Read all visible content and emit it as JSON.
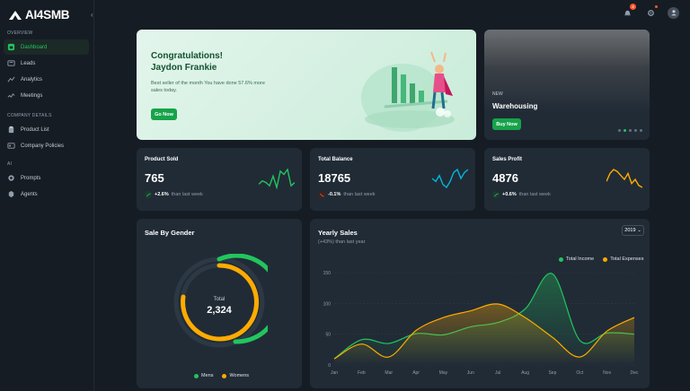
{
  "brand": {
    "name": "AI4SMB"
  },
  "sidebar": {
    "sections": [
      {
        "title": "OVERVIEW",
        "items": [
          {
            "label": "Dashboard",
            "active": true,
            "icon": "dashboard-icon"
          },
          {
            "label": "Leads",
            "icon": "leads-icon"
          },
          {
            "label": "Analytics",
            "icon": "analytics-icon"
          },
          {
            "label": "Meetings",
            "icon": "meetings-icon"
          }
        ]
      },
      {
        "title": "COMPANY DETAILS",
        "items": [
          {
            "label": "Product List",
            "icon": "product-list-icon"
          },
          {
            "label": "Company Policies",
            "icon": "policies-icon"
          }
        ]
      },
      {
        "title": "AI",
        "items": [
          {
            "label": "Prompts",
            "icon": "prompts-icon"
          },
          {
            "label": "Agents",
            "icon": "agents-icon"
          }
        ]
      }
    ]
  },
  "header": {
    "notification_count": "4"
  },
  "welcome": {
    "title": "Congratulations!",
    "name": "Jaydon Frankie",
    "description": "Best seller of the month You have done 57.6% more sales today.",
    "button": "Go Now"
  },
  "featured": {
    "tag": "NEW",
    "title": "Warehousing",
    "button": "Buy Now",
    "slides": 5,
    "active_slide": 2
  },
  "stats": [
    {
      "label": "Product Sold",
      "value": "765",
      "change": "+2.6%",
      "note": "than last week",
      "trend": "up",
      "color": "#22c55e",
      "spark": [
        4,
        6,
        5,
        3,
        9,
        2,
        12,
        10,
        13,
        3,
        5
      ]
    },
    {
      "label": "Total Balance",
      "value": "18765",
      "change": "-0.1%",
      "note": "than last week",
      "trend": "down",
      "color": "#00b8d9",
      "spark": [
        6,
        5,
        7,
        4,
        3,
        5,
        8,
        9,
        6,
        8,
        9
      ]
    },
    {
      "label": "Sales Profit",
      "value": "4876",
      "change": "+0.6%",
      "note": "than last week",
      "trend": "up",
      "color": "#ffab00",
      "spark": [
        5,
        9,
        11,
        10,
        8,
        6,
        9,
        4,
        6,
        3,
        2
      ]
    }
  ],
  "gender": {
    "title": "Sale By Gender",
    "total_label": "Total",
    "total": "2,324",
    "legend": [
      {
        "label": "Mens",
        "color": "#22c55e"
      },
      {
        "label": "Womens",
        "color": "#ffab00"
      }
    ]
  },
  "chart_data": {
    "type": "area",
    "title": "Yearly Sales",
    "subtitle": "(+43%) than last year",
    "year": "2019",
    "categories": [
      "Jan",
      "Feb",
      "Mar",
      "Apr",
      "May",
      "Jun",
      "Jul",
      "Aug",
      "Sep",
      "Oct",
      "Nov",
      "Dec"
    ],
    "ylim": [
      0,
      150
    ],
    "yticks": [
      "150",
      "100",
      "50",
      "0"
    ],
    "series": [
      {
        "name": "Total Income",
        "color": "#22c55e",
        "values": [
          10,
          41,
          35,
          51,
          49,
          62,
          69,
          91,
          148,
          40,
          52,
          50
        ]
      },
      {
        "name": "Total Expenses",
        "color": "#ffab00",
        "values": [
          10,
          34,
          13,
          56,
          77,
          88,
          99,
          77,
          45,
          13,
          55,
          77
        ]
      }
    ]
  }
}
